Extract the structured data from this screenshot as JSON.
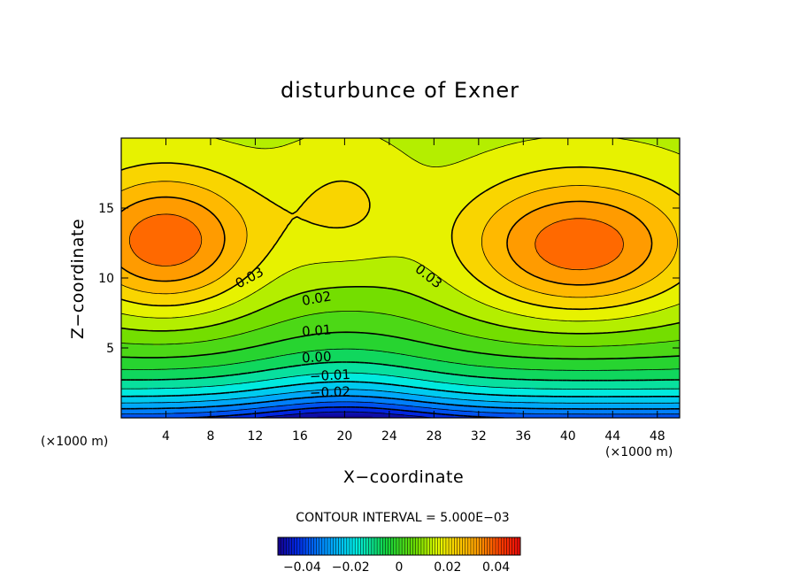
{
  "chart_data": {
    "type": "heatmap",
    "title": "disturbunce of Exner",
    "xlabel": "X−coordinate",
    "ylabel": "Z−coordinate",
    "x_unit_left": "(×1000 m)",
    "x_unit_right": "(×1000 m)",
    "xlim": [
      0,
      50
    ],
    "ylim": [
      0,
      20
    ],
    "x_ticks": [
      4,
      8,
      12,
      16,
      20,
      24,
      28,
      32,
      36,
      40,
      44,
      48
    ],
    "y_ticks": [
      5,
      10,
      15
    ],
    "contour_interval_text": "CONTOUR INTERVAL = 5.000E−03",
    "contour_interval": 0.005,
    "value_range": [
      -0.05,
      0.05
    ],
    "colorbar_ticks": [
      {
        "value": -0.04,
        "label": "−0.04"
      },
      {
        "value": -0.02,
        "label": "−0.02"
      },
      {
        "value": 0,
        "label": "0"
      },
      {
        "value": 0.02,
        "label": "0.02"
      },
      {
        "value": 0.04,
        "label": "0.04"
      }
    ],
    "contour_labels": [
      {
        "text": "0.03",
        "x": 11.5,
        "z": 10.0,
        "angle": -28
      },
      {
        "text": "0.03",
        "x": 27.5,
        "z": 10.1,
        "angle": 38
      },
      {
        "text": "0.02",
        "x": 17.5,
        "z": 8.5,
        "angle": -10
      },
      {
        "text": "0.01",
        "x": 17.5,
        "z": 6.2,
        "angle": -4
      },
      {
        "text": "0.00",
        "x": 17.5,
        "z": 4.3,
        "angle": -3
      },
      {
        "text": "−0.01",
        "x": 18.7,
        "z": 3.0,
        "angle": -3
      },
      {
        "text": "−0.02",
        "x": 18.7,
        "z": 1.8,
        "angle": -2
      }
    ],
    "field_features": {
      "maxima": [
        {
          "x": 4,
          "z": 12.5,
          "value": 0.04
        },
        {
          "x": 41,
          "z": 12.2,
          "value": 0.04
        }
      ],
      "minimum": {
        "x": 20,
        "z": 0,
        "value": -0.045
      },
      "saddle": {
        "x": 20,
        "z": 17,
        "value": 0.025
      }
    }
  }
}
